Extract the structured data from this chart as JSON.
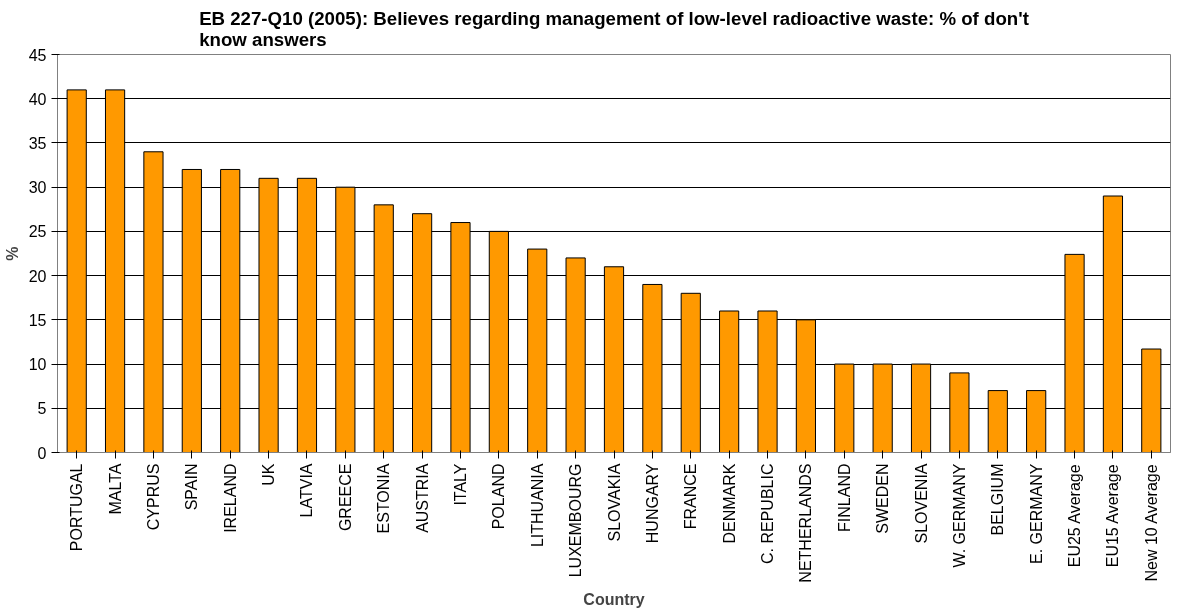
{
  "chart_data": {
    "type": "bar",
    "title": "EB 227-Q10 (2005): Believes regarding management of low-level radioactive waste: % of don't know answers",
    "xlabel": "Country",
    "ylabel": "%",
    "categories": [
      "PORTUGAL",
      "MALTA",
      "CYPRUS",
      "SPAIN",
      "IRELAND",
      "UK",
      "LATVIA",
      "GREECE",
      "ESTONIA",
      "AUSTRIA",
      "ITALY",
      "POLAND",
      "LITHUANIA",
      "LUXEMBOURG",
      "SLOVAKIA",
      "HUNGARY",
      "FRANCE",
      "DENMARK",
      "C. REPUBLIC",
      "NETHERLANDS",
      "FINLAND",
      "SWEDEN",
      "SLOVENIA",
      "W. GERMANY",
      "BELGIUM",
      "E. GERMANY",
      "EU25 Average",
      "EU15 Average",
      "New 10 Average"
    ],
    "values": [
      41,
      41,
      34,
      32,
      32,
      31,
      31,
      30,
      28,
      27,
      26,
      25,
      23,
      22,
      21,
      19,
      18,
      16,
      16,
      15,
      10,
      10,
      10,
      9,
      7,
      7,
      22.4,
      29,
      11.7
    ],
    "color": "#ff9900",
    "ylim": [
      0,
      45
    ],
    "yticks": [
      0,
      5,
      10,
      15,
      20,
      25,
      30,
      35,
      40,
      45
    ],
    "grid": "y"
  }
}
